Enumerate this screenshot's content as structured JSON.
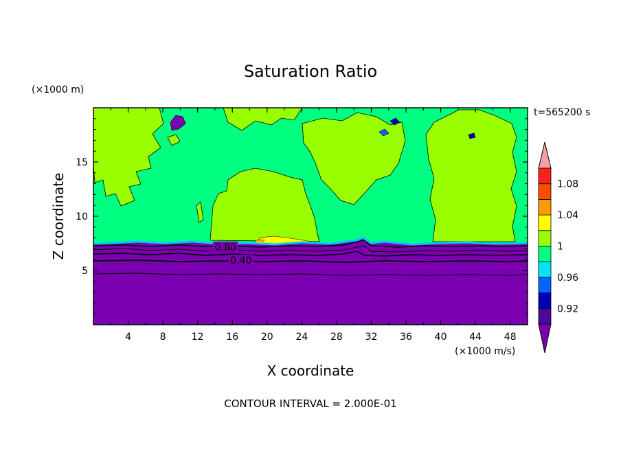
{
  "chart_data": {
    "type": "heatmap",
    "title": "Saturation Ratio",
    "xlabel": "X coordinate",
    "ylabel": "Z coordinate",
    "x_unit": "(×1000 m/s)",
    "y_unit": "(×1000 m)",
    "time_label": "t=565200 s",
    "footer": "CONTOUR INTERVAL = 2.000E-01",
    "xlim": [
      0,
      50
    ],
    "ylim": [
      0,
      20
    ],
    "x_ticks": [
      4,
      8,
      12,
      16,
      20,
      24,
      28,
      32,
      36,
      40,
      44,
      48
    ],
    "y_ticks": [
      5,
      10,
      15
    ],
    "contour_labels": [
      {
        "text": "0.80",
        "x": 15.2,
        "y": 7.1
      },
      {
        "text": "0.40",
        "x": 17.0,
        "y": 5.9
      }
    ],
    "colorbar": {
      "levels": [
        0.9,
        0.92,
        0.94,
        0.96,
        0.98,
        1.0,
        1.02,
        1.04,
        1.06,
        1.08,
        1.1
      ],
      "labels": [
        "0.92",
        "0.96",
        "1",
        "1.04",
        "1.08"
      ],
      "colors": [
        "#4a0a9e",
        "#0000b3",
        "#0066ff",
        "#00e5ff",
        "#00ff80",
        "#99ff00",
        "#ffff00",
        "#ff9900",
        "#ff4d00",
        "#ff2020"
      ],
      "under_color": "#7a00b0",
      "over_color": "#f2a0a0"
    }
  }
}
